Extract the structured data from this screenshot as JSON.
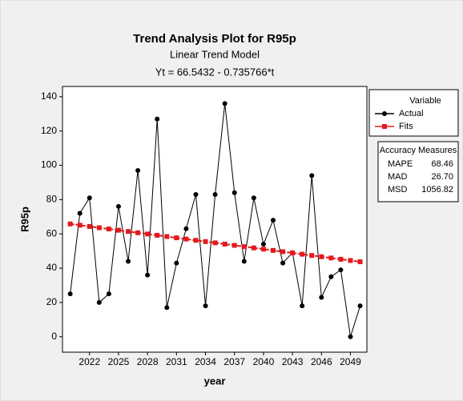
{
  "chart_data": {
    "type": "line",
    "title": "Trend Analysis Plot for R95p",
    "subtitle": "Linear Trend Model",
    "equation": "Yt = 66.5432 - 0.735766*t",
    "x": [
      2020,
      2021,
      2022,
      2023,
      2024,
      2025,
      2026,
      2027,
      2028,
      2029,
      2030,
      2031,
      2032,
      2033,
      2034,
      2035,
      2036,
      2037,
      2038,
      2039,
      2040,
      2041,
      2042,
      2043,
      2044,
      2045,
      2046,
      2047,
      2048,
      2049,
      2050
    ],
    "series": [
      {
        "name": "Actual",
        "color": "#000000",
        "marker": "circle",
        "values": [
          25,
          72,
          81,
          20,
          25,
          76,
          44,
          97,
          36,
          127,
          17,
          43,
          63,
          83,
          18,
          83,
          136,
          84,
          44,
          81,
          54,
          68,
          43,
          49,
          18,
          94,
          23,
          35,
          39,
          0,
          18
        ]
      },
      {
        "name": "Fits",
        "color": "#e31a1c",
        "marker": "square",
        "values": [
          65.81,
          65.07,
          64.34,
          63.6,
          62.86,
          62.13,
          61.39,
          60.66,
          59.92,
          59.19,
          58.45,
          57.71,
          56.98,
          56.24,
          55.51,
          54.77,
          54.04,
          53.3,
          52.56,
          51.83,
          51.09,
          50.36,
          49.62,
          48.88,
          48.15,
          47.41,
          46.68,
          45.94,
          45.21,
          44.47,
          43.73
        ]
      }
    ],
    "xlabel": "year",
    "ylabel": "R95p",
    "xlim": [
      2019.2,
      2050.7
    ],
    "ylim": [
      -9,
      146
    ],
    "xticks": [
      2022,
      2025,
      2028,
      2031,
      2034,
      2037,
      2040,
      2043,
      2046,
      2049
    ],
    "yticks": [
      0,
      20,
      40,
      60,
      80,
      100,
      120,
      140
    ],
    "legend_title": "Variable",
    "accuracy": {
      "title": "Accuracy Measures",
      "rows": [
        [
          "MAPE",
          "68.46"
        ],
        [
          "MAD",
          "26.70"
        ],
        [
          "MSD",
          "1056.82"
        ]
      ]
    }
  }
}
